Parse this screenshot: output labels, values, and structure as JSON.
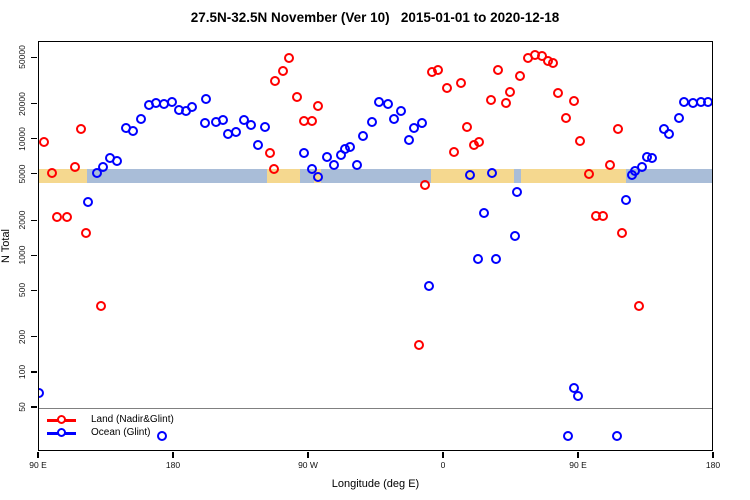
{
  "title": "27.5N-32.5N November (Ver 10)   2015-01-01 to 2020-12-18",
  "chart_data": {
    "type": "scatter",
    "title": "27.5N-32.5N November (Ver 10)   2015-01-01 to 2020-12-18",
    "xlabel": "Longitude (deg E)",
    "ylabel": "N Total",
    "x_axis": {
      "note": "longitude axis wraps eastward from 90E through 180, 90W, 0 back to 90E and 180",
      "range_deg": [
        90,
        540
      ],
      "ticks": [
        {
          "pos": 90,
          "label": "90 E"
        },
        {
          "pos": 180,
          "label": "180"
        },
        {
          "pos": 270,
          "label": "90 W"
        },
        {
          "pos": 360,
          "label": "0"
        },
        {
          "pos": 450,
          "label": "90 E"
        },
        {
          "pos": 540,
          "label": "180"
        }
      ]
    },
    "y_axis": {
      "scale": "log",
      "range": [
        21,
        69000
      ],
      "ticks": [
        50,
        100,
        200,
        500,
        1000,
        2000,
        5000,
        10000,
        20000,
        50000
      ]
    },
    "reference_line_y": 50,
    "surface_band": {
      "description": "land/ocean surface-type strip drawn near N=5000",
      "y_range": [
        4300,
        5650
      ],
      "land_color": "#F5D88F",
      "ocean_color": "#A9BDD8",
      "segments": [
        {
          "from": 90,
          "to": 122,
          "surface": "land"
        },
        {
          "from": 122,
          "to": 242,
          "surface": "ocean"
        },
        {
          "from": 242,
          "to": 264,
          "surface": "land"
        },
        {
          "from": 264,
          "to": 273,
          "surface": "ocean"
        },
        {
          "from": 273,
          "to": 278,
          "surface": "land"
        },
        {
          "from": 278,
          "to": 351,
          "surface": "ocean"
        },
        {
          "from": 351,
          "to": 406.5,
          "surface": "land"
        },
        {
          "from": 406.5,
          "to": 411,
          "surface": "ocean"
        },
        {
          "from": 411,
          "to": 481,
          "surface": "land"
        },
        {
          "from": 481,
          "to": 540,
          "surface": "ocean"
        }
      ]
    },
    "legend": {
      "position": "bottom-left",
      "items": [
        {
          "label": "Land (Nadir&Glint)",
          "color": "#FF0000"
        },
        {
          "label": "Ocean (Glint)",
          "color": "#0000FF"
        }
      ]
    },
    "series": [
      {
        "name": "Land (Nadir&Glint)",
        "color": "#FF0000",
        "points": [
          [
            93,
            9500
          ],
          [
            98.5,
            5200
          ],
          [
            114,
            5900
          ],
          [
            118,
            12300
          ],
          [
            102,
            2170
          ],
          [
            108.5,
            2170
          ],
          [
            121,
            1600
          ],
          [
            131,
            373
          ],
          [
            256.5,
            50000
          ],
          [
            252.5,
            39000
          ],
          [
            247,
            32000
          ],
          [
            262,
            23500
          ],
          [
            276,
            19500
          ],
          [
            266.5,
            14500
          ],
          [
            272,
            14500
          ],
          [
            244,
            7700
          ],
          [
            246.5,
            5600
          ],
          [
            343,
            175
          ],
          [
            347,
            4100
          ],
          [
            352,
            38000
          ],
          [
            356,
            39500
          ],
          [
            362,
            28000
          ],
          [
            366.5,
            7800
          ],
          [
            371,
            31000
          ],
          [
            375,
            12800
          ],
          [
            380,
            9000
          ],
          [
            383,
            9500
          ],
          [
            391,
            22000
          ],
          [
            396,
            39500
          ],
          [
            401,
            20500
          ],
          [
            404,
            25500
          ],
          [
            410.5,
            35000
          ],
          [
            416,
            50000
          ],
          [
            420.5,
            53000
          ],
          [
            425,
            52000
          ],
          [
            429,
            47000
          ],
          [
            432.5,
            45500
          ],
          [
            436,
            25000
          ],
          [
            441,
            15400
          ],
          [
            446.5,
            21500
          ],
          [
            450.5,
            9700
          ],
          [
            456.5,
            5100
          ],
          [
            461,
            2200
          ],
          [
            466,
            2200
          ],
          [
            470.5,
            6050
          ],
          [
            476,
            12300
          ],
          [
            478.5,
            1600
          ],
          [
            490,
            373
          ]
        ]
      },
      {
        "name": "Ocean (Glint)",
        "color": "#0000FF",
        "points": [
          [
            90.3,
            67
          ],
          [
            122.5,
            2900
          ],
          [
            128.5,
            5200
          ],
          [
            132.5,
            5900
          ],
          [
            137,
            6950
          ],
          [
            142,
            6550
          ],
          [
            148,
            12600
          ],
          [
            152.5,
            11900
          ],
          [
            158,
            15000
          ],
          [
            163,
            19800
          ],
          [
            168,
            20600
          ],
          [
            173,
            20300
          ],
          [
            178.5,
            21000
          ],
          [
            183,
            18000
          ],
          [
            188,
            17600
          ],
          [
            192,
            19000
          ],
          [
            201,
            22300
          ],
          [
            200.5,
            13900
          ],
          [
            208,
            14100
          ],
          [
            212.5,
            14700
          ],
          [
            216,
            11200
          ],
          [
            221,
            11600
          ],
          [
            226.5,
            14700
          ],
          [
            231,
            13300
          ],
          [
            236,
            9000
          ],
          [
            240.5,
            12800
          ],
          [
            266.5,
            7700
          ],
          [
            272,
            5600
          ],
          [
            276,
            4800
          ],
          [
            282,
            7100
          ],
          [
            286.5,
            6050
          ],
          [
            291,
            7400
          ],
          [
            294,
            8300
          ],
          [
            297,
            8650
          ],
          [
            302,
            6050
          ],
          [
            306,
            10700
          ],
          [
            312,
            14100
          ],
          [
            316.5,
            21000
          ],
          [
            322.5,
            20300
          ],
          [
            326.5,
            15000
          ],
          [
            331,
            17600
          ],
          [
            336.5,
            9900
          ],
          [
            340,
            12600
          ],
          [
            345,
            13800
          ],
          [
            350,
            555
          ],
          [
            377,
            5000
          ],
          [
            382.5,
            950
          ],
          [
            386.5,
            2350
          ],
          [
            392,
            5200
          ],
          [
            394.5,
            950
          ],
          [
            407,
            1500
          ],
          [
            408.5,
            3550
          ],
          [
            442.5,
            29
          ],
          [
            446.5,
            75
          ],
          [
            449,
            64
          ],
          [
            475,
            29
          ],
          [
            172,
            29
          ],
          [
            481,
            3030
          ],
          [
            485,
            4950
          ],
          [
            487,
            5400
          ],
          [
            492,
            5900
          ],
          [
            495,
            7100
          ],
          [
            498.5,
            7000
          ],
          [
            506.5,
            12300
          ],
          [
            510,
            11300
          ],
          [
            516.5,
            15400
          ],
          [
            520,
            21000
          ],
          [
            526,
            20700
          ],
          [
            531,
            21000
          ],
          [
            536,
            21300
          ]
        ]
      }
    ]
  }
}
